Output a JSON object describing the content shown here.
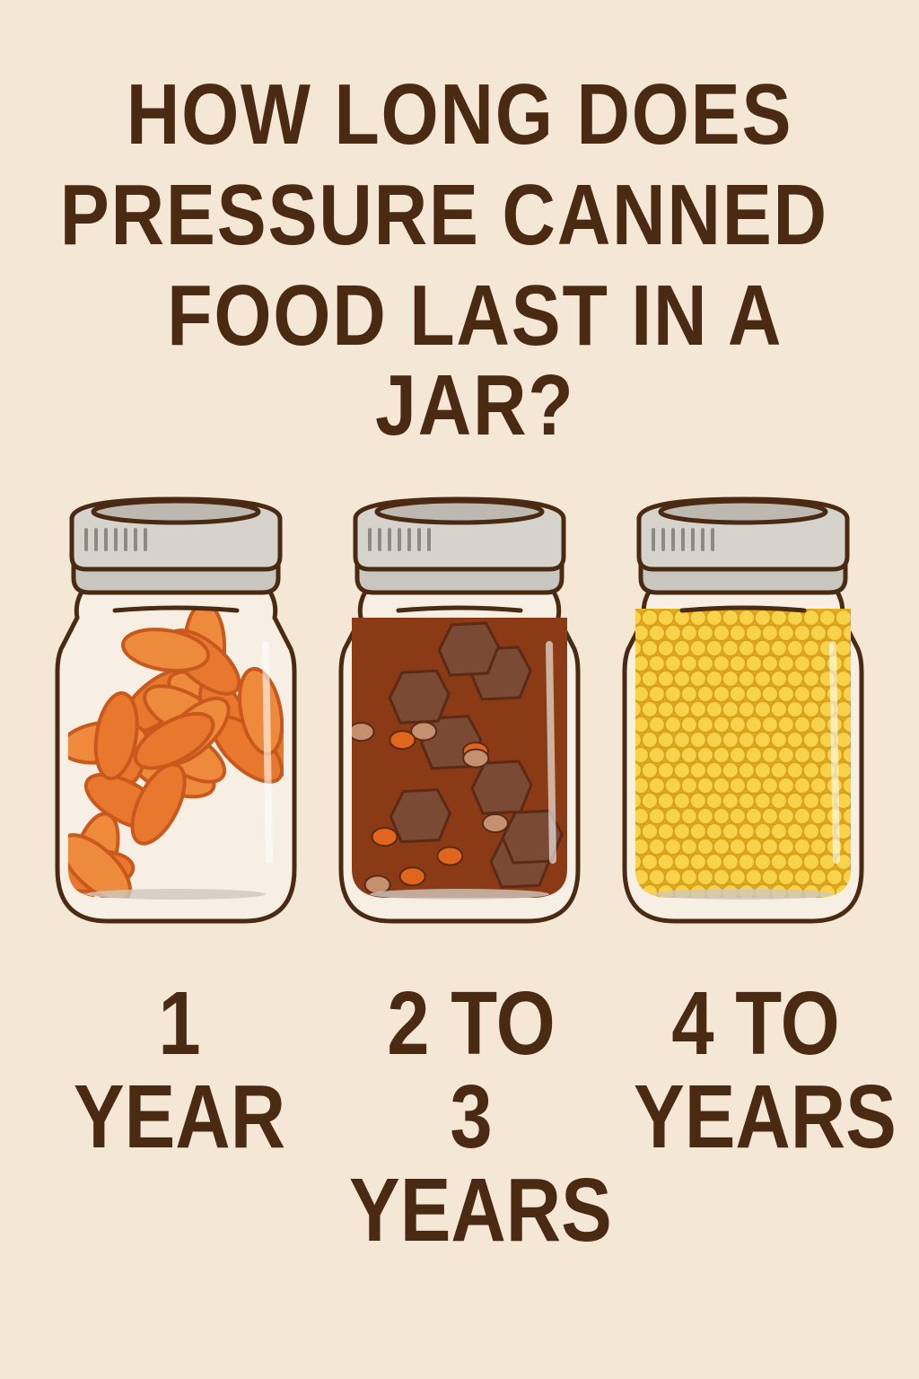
{
  "title": {
    "line1": "HOW LONG DOES",
    "line2": "PRESSURE CANNED",
    "line3": "FOOD LAST IN A JAR?"
  },
  "jars": [
    {
      "contents": "carrots",
      "color": "#e8782e",
      "label_line1": "1",
      "label_line2": "YEAR"
    },
    {
      "contents": "stew",
      "color": "#8a3a14",
      "label_line1": "2 TO",
      "label_line2": "3 YEARS"
    },
    {
      "contents": "corn",
      "color": "#f2c232",
      "label_line1": "4 TO",
      "label_line2": "YEARS"
    }
  ],
  "colors": {
    "background": "#f4e7d5",
    "text": "#4a2a12",
    "lid": "#c9c6bf",
    "outline": "#4a2a12"
  }
}
